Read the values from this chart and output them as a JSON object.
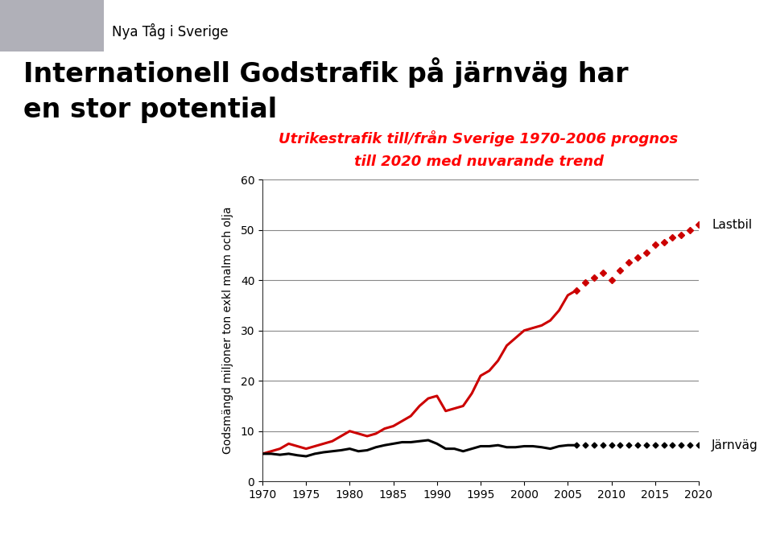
{
  "title_line1": "Internationell Godstrafik på järnväg har",
  "title_line2": "en stor potential",
  "subtitle_line1": "Utrikestrafik till/från Sverige 1970-2006 prognos",
  "subtitle_line2": "till 2020 med nuvarande trend",
  "ylabel": "Godsmängd miljoner ton exkl malm och olja",
  "xlabel": "",
  "xlim": [
    1970,
    2020
  ],
  "ylim": [
    0,
    60
  ],
  "yticks": [
    0,
    10,
    20,
    30,
    40,
    50,
    60
  ],
  "xticks": [
    1970,
    1975,
    1980,
    1985,
    1990,
    1995,
    2000,
    2005,
    2010,
    2015,
    2020
  ],
  "lastbil_label": "Lastbil",
  "jarnvag_label": "Järnväg",
  "lastbil_color": "#cc0000",
  "jarnvag_color": "#000000",
  "lastbil_historical": {
    "years": [
      1970,
      1971,
      1972,
      1973,
      1974,
      1975,
      1976,
      1977,
      1978,
      1979,
      1980,
      1981,
      1982,
      1983,
      1984,
      1985,
      1986,
      1987,
      1988,
      1989,
      1990,
      1991,
      1992,
      1993,
      1994,
      1995,
      1996,
      1997,
      1998,
      1999,
      2000,
      2001,
      2002,
      2003,
      2004,
      2005,
      2006
    ],
    "values": [
      5.5,
      6.0,
      6.5,
      7.5,
      7.0,
      6.5,
      7.0,
      7.5,
      8.0,
      9.0,
      10.0,
      9.5,
      9.0,
      9.5,
      10.5,
      11.0,
      12.0,
      13.0,
      15.0,
      16.5,
      17.0,
      14.0,
      14.5,
      15.0,
      17.5,
      21.0,
      22.0,
      24.0,
      27.0,
      28.5,
      30.0,
      30.5,
      31.0,
      32.0,
      34.0,
      37.0,
      38.0
    ]
  },
  "lastbil_forecast": {
    "years": [
      2006,
      2007,
      2008,
      2009,
      2010,
      2011,
      2012,
      2013,
      2014,
      2015,
      2016,
      2017,
      2018,
      2019,
      2020
    ],
    "values": [
      38.0,
      39.5,
      40.5,
      41.5,
      40.0,
      42.0,
      43.5,
      44.5,
      45.5,
      47.0,
      47.5,
      48.5,
      49.0,
      50.0,
      51.0
    ]
  },
  "jarnvag_historical": {
    "years": [
      1970,
      1971,
      1972,
      1973,
      1974,
      1975,
      1976,
      1977,
      1978,
      1979,
      1980,
      1981,
      1982,
      1983,
      1984,
      1985,
      1986,
      1987,
      1988,
      1989,
      1990,
      1991,
      1992,
      1993,
      1994,
      1995,
      1996,
      1997,
      1998,
      1999,
      2000,
      2001,
      2002,
      2003,
      2004,
      2005,
      2006
    ],
    "values": [
      5.5,
      5.5,
      5.3,
      5.5,
      5.2,
      5.0,
      5.5,
      5.8,
      6.0,
      6.2,
      6.5,
      6.0,
      6.2,
      6.8,
      7.2,
      7.5,
      7.8,
      7.8,
      8.0,
      8.2,
      7.5,
      6.5,
      6.5,
      6.0,
      6.5,
      7.0,
      7.0,
      7.2,
      6.8,
      6.8,
      7.0,
      7.0,
      6.8,
      6.5,
      7.0,
      7.2,
      7.2
    ]
  },
  "jarnvag_forecast": {
    "years": [
      2006,
      2007,
      2008,
      2009,
      2010,
      2011,
      2012,
      2013,
      2014,
      2015,
      2016,
      2017,
      2018,
      2019,
      2020
    ],
    "values": [
      7.2,
      7.2,
      7.2,
      7.2,
      7.2,
      7.2,
      7.2,
      7.2,
      7.2,
      7.2,
      7.2,
      7.2,
      7.2,
      7.2,
      7.2
    ]
  },
  "bg_color": "#ffffff",
  "plot_bg_color": "#ffffff",
  "grid_color": "#888888",
  "title_fontsize": 24,
  "subtitle_fontsize": 13,
  "label_fontsize": 10,
  "tick_fontsize": 10,
  "legend_fontsize": 11,
  "header_text": "Nya Tåg i Sverige",
  "header_fontsize": 12
}
